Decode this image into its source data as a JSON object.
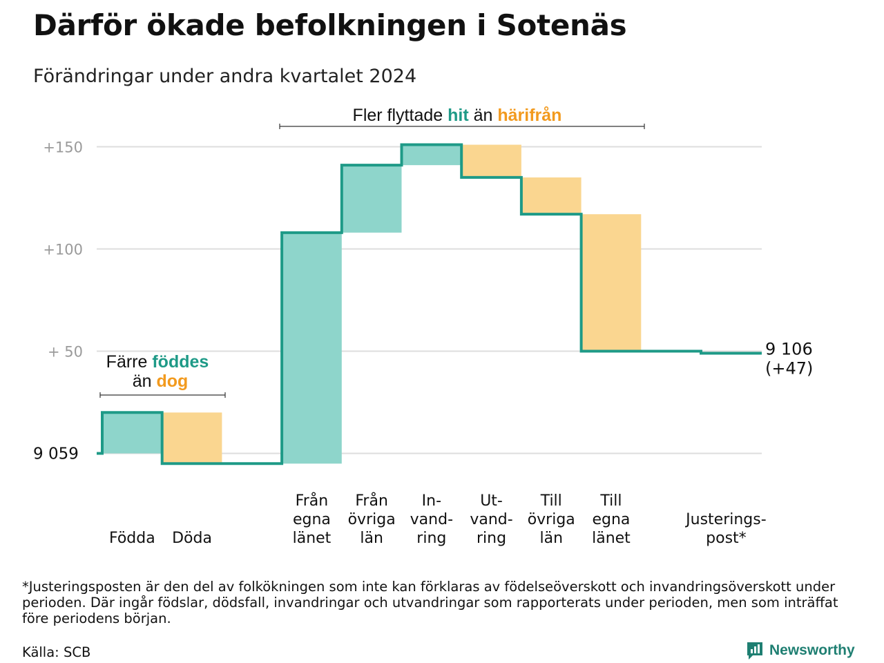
{
  "title": "Därför ökade befolkningen i Sotenäs",
  "subtitle": "Förändringar under andra kvartalet 2024",
  "colors": {
    "increase": "#8ed5cb",
    "decrease": "#fad690",
    "line": "#1e9a87",
    "accent_teal": "#1e9a87",
    "accent_orange": "#f29a1e",
    "grid": "#dddddd"
  },
  "chart_data": {
    "type": "waterfall",
    "start_value": 9059,
    "start_label": "9  059",
    "end_value": 9106,
    "end_label": "9 106",
    "end_change_label": "(+47)",
    "yticks": [
      {
        "value": 9209,
        "label": "+150"
      },
      {
        "value": 9159,
        "label": "+100"
      },
      {
        "value": 9109,
        "label": "+  50"
      }
    ],
    "ylim": [
      9050,
      9215
    ],
    "steps": [
      {
        "label_lines": [
          "Födda"
        ],
        "change": 20
      },
      {
        "label_lines": [
          "Döda"
        ],
        "change": -25
      },
      {
        "label_lines": [
          ""
        ],
        "change": 0
      },
      {
        "label_lines": [
          "Från",
          "egna",
          "länet"
        ],
        "change": 113
      },
      {
        "label_lines": [
          "Från",
          "övriga",
          "län"
        ],
        "change": 33
      },
      {
        "label_lines": [
          "In-",
          "vand-",
          "ring"
        ],
        "change": 10
      },
      {
        "label_lines": [
          "Ut-",
          "vand-",
          "ring"
        ],
        "change": -16
      },
      {
        "label_lines": [
          "Till",
          "övriga",
          "län"
        ],
        "change": -18
      },
      {
        "label_lines": [
          "Till",
          "egna",
          "länet"
        ],
        "change": -67
      },
      {
        "label_lines": [
          ""
        ],
        "change": 0
      },
      {
        "label_lines": [
          "Justerings-",
          "post*"
        ],
        "change": -1
      }
    ],
    "annotations": [
      {
        "parts": [
          {
            "text": "Färre ",
            "style": "plain"
          },
          {
            "text": "föddes",
            "style": "teal"
          },
          {
            "text": "än ",
            "style": "plain",
            "newline": true
          },
          {
            "text": "dog",
            "style": "orange"
          }
        ]
      },
      {
        "parts": [
          {
            "text": "Fler flyttade ",
            "style": "plain"
          },
          {
            "text": "hit",
            "style": "teal"
          },
          {
            "text": " än ",
            "style": "plain"
          },
          {
            "text": "härifrån",
            "style": "orange"
          }
        ]
      }
    ]
  },
  "footnote": "*Justeringsposten är den del av folkökningen som inte kan förklaras av födelseöverskott och invandringsöverskott under perioden. Där ingår födslar, dödsfall, invandringar och utvandringar som rapporterats under perioden, men som inträffat före periodens början.",
  "source": "Källa: SCB",
  "brand": {
    "name": "Newsworthy",
    "icon": "newsworthy-logo-icon"
  }
}
